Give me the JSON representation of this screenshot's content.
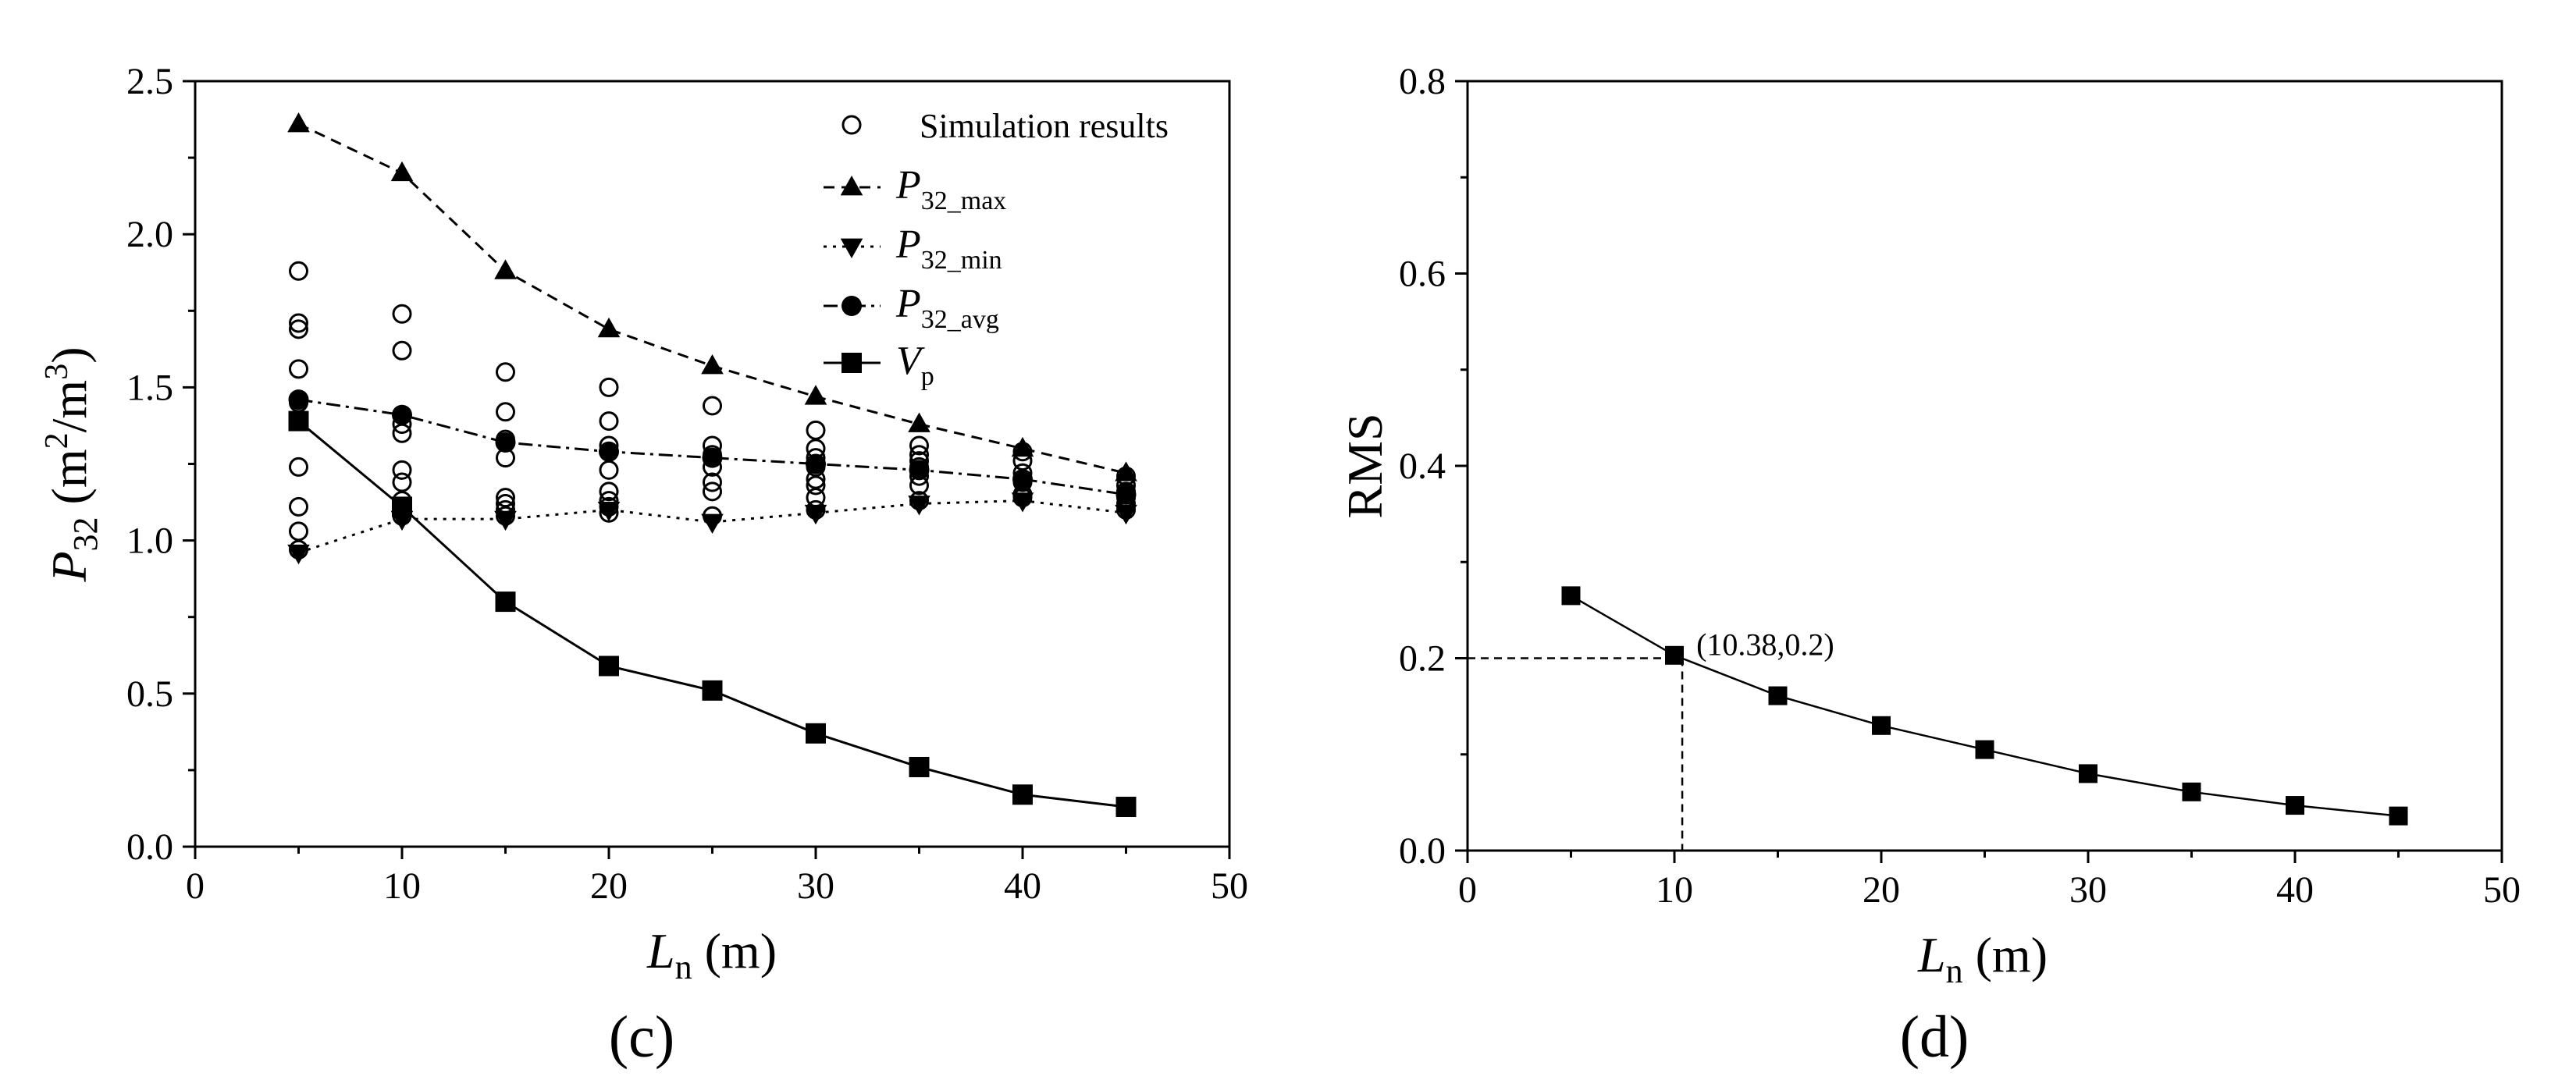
{
  "chart_data": [
    {
      "type": "scatter+line",
      "panel_label": "(c)",
      "xlabel": {
        "main": "L",
        "sub": "n",
        "unit": " (m)"
      },
      "ylabel": {
        "main": "P",
        "sub": "32",
        "unit_open": " (m",
        "sup1": "2",
        "unit_mid": "/m",
        "sup2": "3",
        "unit_close": ")"
      },
      "xlim": [
        0,
        50
      ],
      "ylim": [
        0,
        2.5
      ],
      "xticks": [
        0,
        10,
        20,
        30,
        40,
        50
      ],
      "yticks": [
        0.0,
        0.5,
        1.0,
        1.5,
        2.0,
        2.5
      ],
      "ytick_labels": [
        "0.0",
        "0.5",
        "1.0",
        "1.5",
        "2.0",
        "2.5"
      ],
      "x": [
        5,
        10,
        15,
        20,
        25,
        30,
        35,
        40,
        45
      ],
      "simulation_results": {
        "name": "Simulation results",
        "points": [
          [
            5,
            [
              1.88,
              1.71,
              1.69,
              1.56,
              1.45,
              1.24,
              1.11,
              1.03,
              0.97
            ]
          ],
          [
            10,
            [
              1.74,
              1.62,
              1.41,
              1.38,
              1.35,
              1.23,
              1.19,
              1.13,
              1.08
            ]
          ],
          [
            15,
            [
              1.55,
              1.42,
              1.33,
              1.27,
              1.14,
              1.12,
              1.1,
              1.08
            ]
          ],
          [
            20,
            [
              1.5,
              1.39,
              1.31,
              1.23,
              1.16,
              1.13,
              1.11,
              1.09
            ]
          ],
          [
            25,
            [
              1.44,
              1.31,
              1.28,
              1.24,
              1.19,
              1.16,
              1.08
            ]
          ],
          [
            30,
            [
              1.36,
              1.3,
              1.27,
              1.24,
              1.2,
              1.18,
              1.14,
              1.1
            ]
          ],
          [
            35,
            [
              1.31,
              1.28,
              1.26,
              1.24,
              1.21,
              1.18,
              1.13
            ]
          ],
          [
            40,
            [
              1.29,
              1.26,
              1.22,
              1.19,
              1.15,
              1.14
            ]
          ],
          [
            45,
            [
              1.21,
              1.18,
              1.16,
              1.14,
              1.12,
              1.1
            ]
          ]
        ]
      },
      "series": [
        {
          "name_main": "P",
          "name_sub": "32_max",
          "marker": "triangle-up",
          "dash": "14,9",
          "values": [
            2.36,
            2.2,
            1.88,
            1.69,
            1.57,
            1.47,
            1.38,
            1.3,
            1.22
          ]
        },
        {
          "name_main": "P",
          "name_sub": "32_min",
          "marker": "triangle-down",
          "dash": "4,8",
          "values": [
            0.96,
            1.07,
            1.07,
            1.1,
            1.06,
            1.09,
            1.12,
            1.13,
            1.09
          ]
        },
        {
          "name_main": "P",
          "name_sub": "32_avg",
          "marker": "circle",
          "dash": "18,7,4,7",
          "values": [
            1.46,
            1.41,
            1.32,
            1.29,
            1.27,
            1.25,
            1.23,
            1.2,
            1.15
          ]
        },
        {
          "name_main": "V",
          "name_sub": "p",
          "marker": "square",
          "dash": "",
          "values": [
            1.39,
            1.11,
            0.8,
            0.59,
            0.51,
            0.37,
            0.26,
            0.17,
            0.13
          ]
        }
      ],
      "legend_position": "top-right"
    },
    {
      "type": "line",
      "panel_label": "(d)",
      "xlabel": {
        "main": "L",
        "sub": "n",
        "unit": " (m)"
      },
      "ylabel": "RMS",
      "xlim": [
        0,
        50
      ],
      "ylim": [
        0,
        0.8
      ],
      "xticks": [
        0,
        10,
        20,
        30,
        40,
        50
      ],
      "yticks": [
        0.0,
        0.2,
        0.4,
        0.6,
        0.8
      ],
      "ytick_labels": [
        "0.0",
        "0.2",
        "0.4",
        "0.6",
        "0.8"
      ],
      "x": [
        5,
        10,
        15,
        20,
        25,
        30,
        35,
        40,
        45
      ],
      "values": [
        0.265,
        0.203,
        0.161,
        0.13,
        0.105,
        0.08,
        0.061,
        0.047,
        0.036
      ],
      "annotation": {
        "text": "(10.38,0.2)",
        "x": 10.38,
        "y": 0.2
      }
    }
  ]
}
